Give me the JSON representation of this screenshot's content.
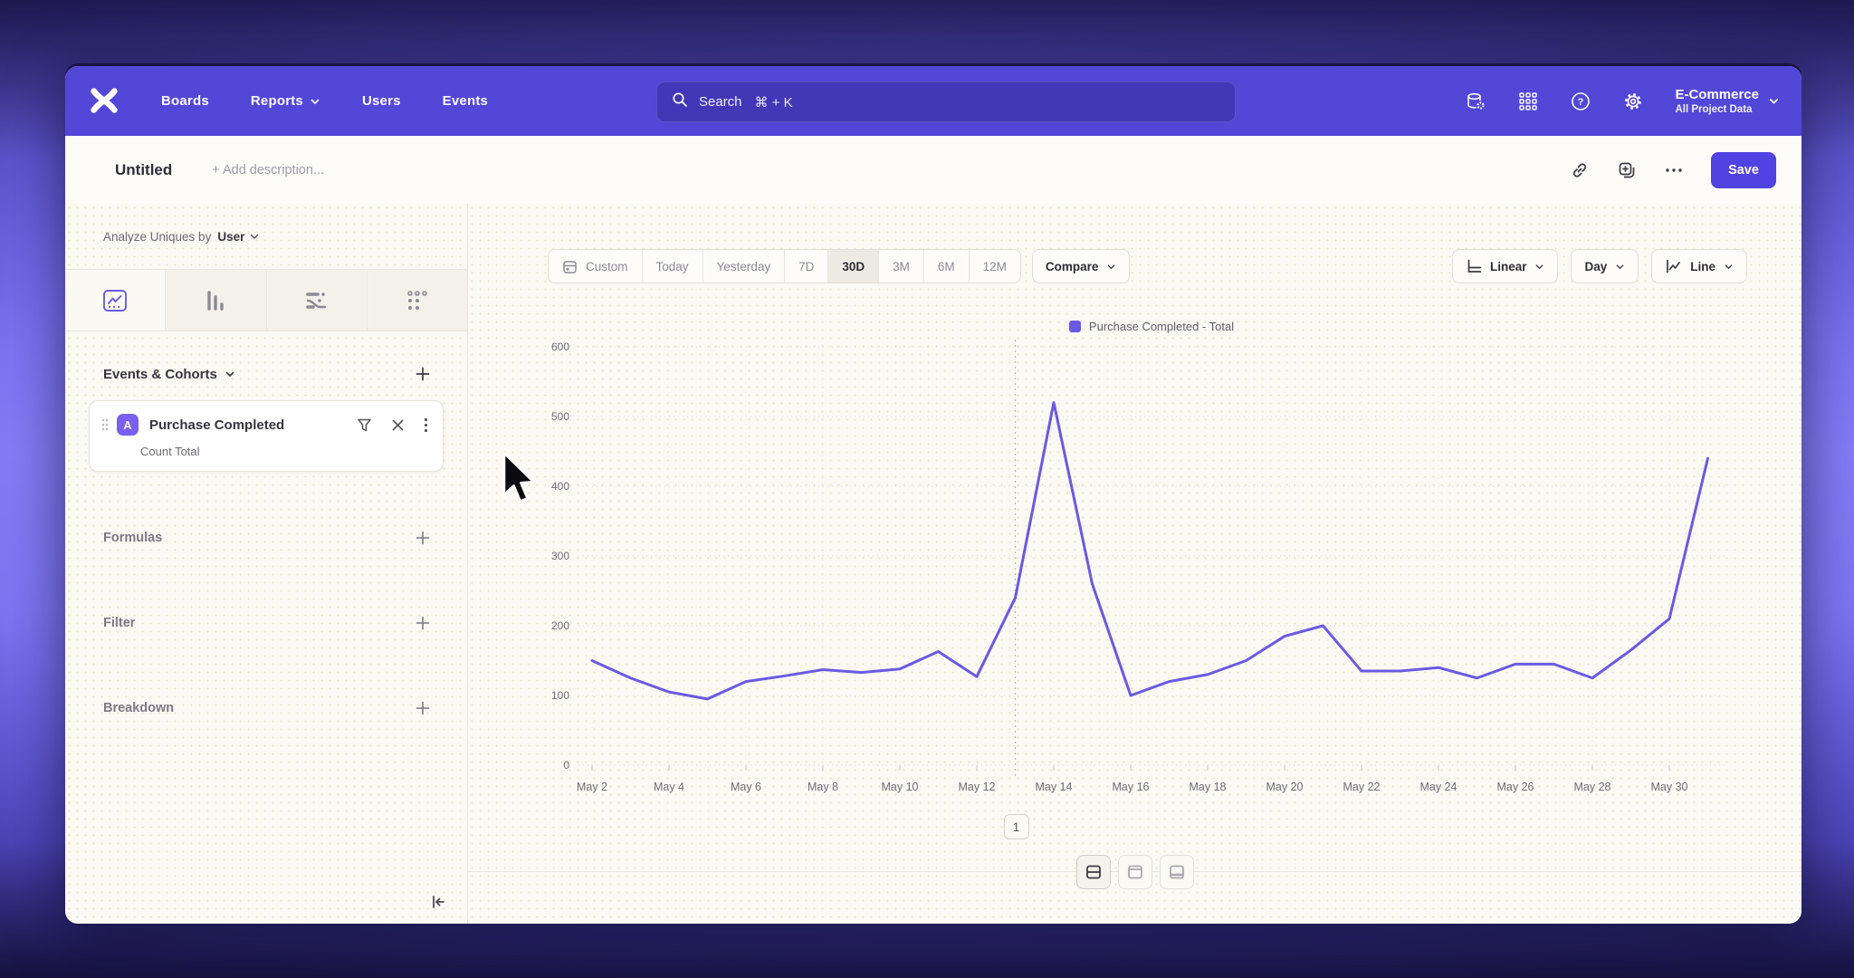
{
  "nav": {
    "items": [
      "Boards",
      "Reports",
      "Users",
      "Events"
    ],
    "search": {
      "placeholder": "Search",
      "shortcut": "⌘ + K"
    },
    "project": {
      "name": "E-Commerce",
      "scope": "All Project Data"
    }
  },
  "header": {
    "title": "Untitled",
    "description_placeholder": "+ Add description...",
    "save_label": "Save"
  },
  "sidebar": {
    "analyze_prefix": "Analyze Uniques by",
    "analyze_value": "User",
    "events_header": "Events & Cohorts",
    "event_card": {
      "badge": "A",
      "name": "Purchase Completed",
      "metric": "Count Total"
    },
    "sections": [
      "Formulas",
      "Filter",
      "Breakdown"
    ]
  },
  "toolbar": {
    "ranges": [
      "Custom",
      "Today",
      "Yesterday",
      "7D",
      "30D",
      "3M",
      "6M",
      "12M"
    ],
    "active_range": "30D",
    "compare": "Compare",
    "scale": "Linear",
    "interval": "Day",
    "chart_type": "Line"
  },
  "chart_data": {
    "type": "line",
    "title": "",
    "legend_position": "top-center",
    "x": [
      "May 2",
      "May 3",
      "May 4",
      "May 5",
      "May 6",
      "May 7",
      "May 8",
      "May 9",
      "May 10",
      "May 11",
      "May 12",
      "May 13",
      "May 14",
      "May 15",
      "May 16",
      "May 17",
      "May 18",
      "May 19",
      "May 20",
      "May 21",
      "May 22",
      "May 23",
      "May 24",
      "May 25",
      "May 26",
      "May 27",
      "May 28",
      "May 29",
      "May 30",
      "May 31"
    ],
    "series": [
      {
        "name": "Purchase Completed - Total",
        "color": "#6a5ae2",
        "values": [
          150,
          125,
          105,
          95,
          120,
          128,
          137,
          133,
          138,
          163,
          127,
          240,
          520,
          260,
          100,
          120,
          130,
          150,
          185,
          200,
          135,
          135,
          140,
          125,
          145,
          145,
          125,
          165,
          210,
          440
        ]
      }
    ],
    "x_tick_labels": [
      "May 2",
      "May 4",
      "May 6",
      "May 8",
      "May 10",
      "May 12",
      "May 14",
      "May 16",
      "May 18",
      "May 20",
      "May 22",
      "May 24",
      "May 26",
      "May 28",
      "May 30"
    ],
    "y_ticks": [
      0,
      100,
      200,
      300,
      400,
      500,
      600
    ],
    "ylim": [
      0,
      600
    ],
    "grid": "dotted",
    "annotations": [
      {
        "x": "May 13",
        "label": "1"
      }
    ]
  },
  "bottom_toolbar": {
    "layouts": [
      "split-middle",
      "panel-top",
      "panel-bottom"
    ],
    "active": "split-middle"
  },
  "colors": {
    "accent": "#5347d8",
    "line": "#6a5ae2",
    "event_badge": "#7a5ff0",
    "save": "#5142e2"
  }
}
